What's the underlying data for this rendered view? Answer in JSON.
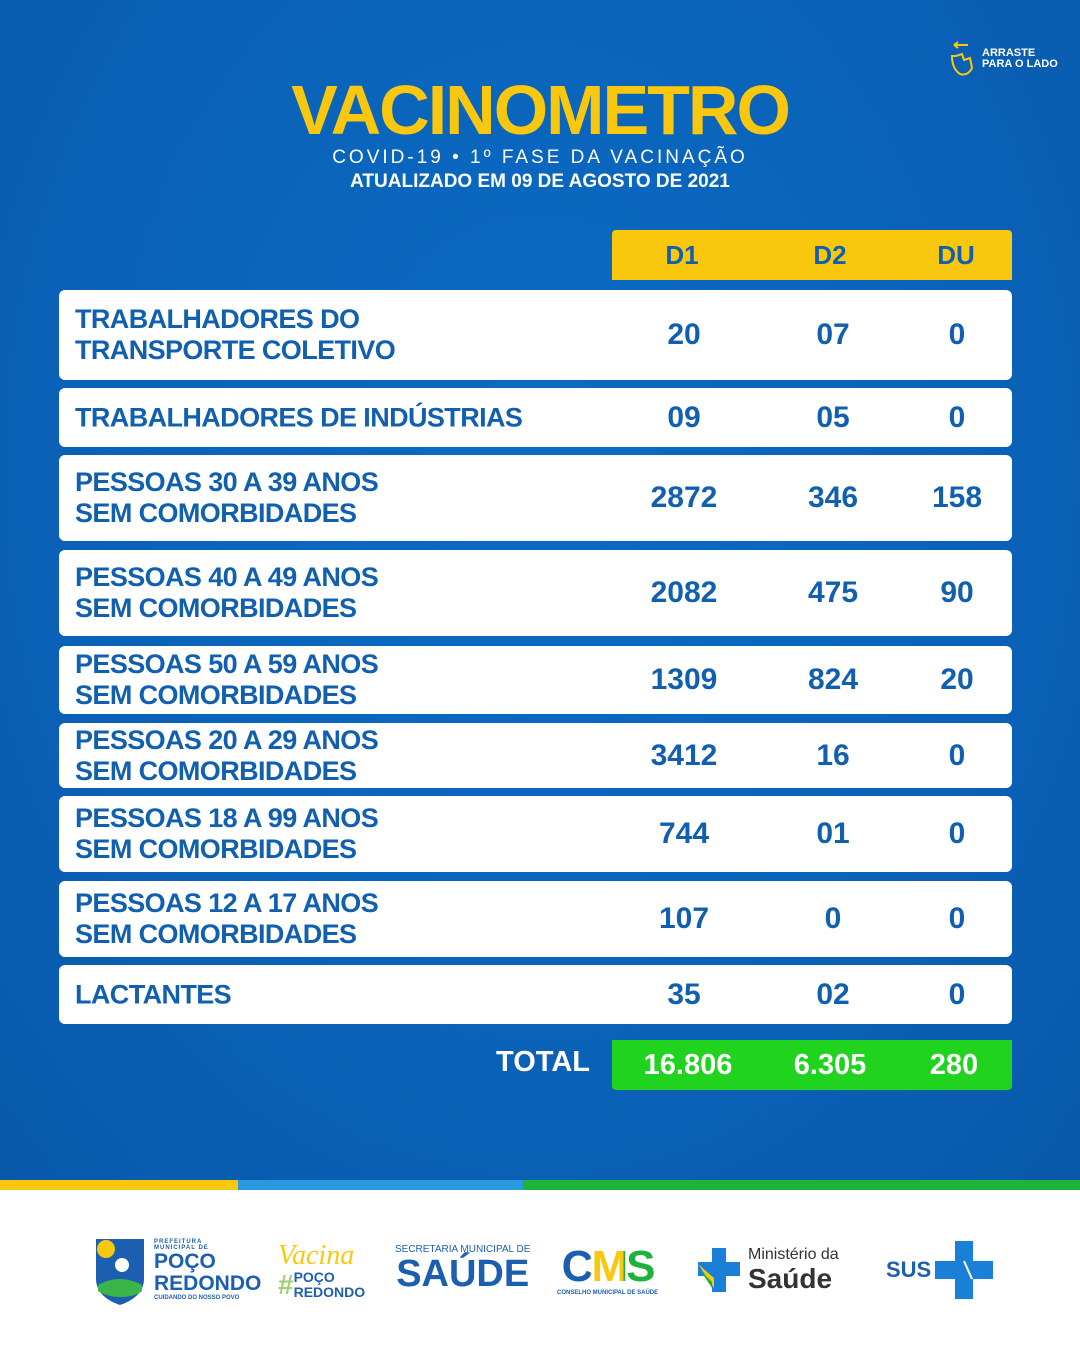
{
  "swipe_hint": {
    "label": "ARRASTE PARA O LADO",
    "icon": "swipe-hand-icon"
  },
  "title": "VACINOMETRO",
  "subtitle": "COVID-19 •  1º FASE DA VACINAÇÃO",
  "updated": "ATUALIZADO EM 09 DE AGOSTO DE 2021",
  "columns": [
    "D1",
    "D2",
    "DU"
  ],
  "rows": [
    {
      "label": "TRABALHADORES DO\nTRANSPORTE COLETIVO",
      "d1": "20",
      "d2": "07",
      "du": "0"
    },
    {
      "label": "TRABALHADORES DE INDÚSTRIAS",
      "d1": "09",
      "d2": "05",
      "du": "0"
    },
    {
      "label": "PESSOAS 30 A 39 ANOS\nSEM COMORBIDADES",
      "d1": "2872",
      "d2": "346",
      "du": "158"
    },
    {
      "label": "PESSOAS 40 A 49 ANOS\nSEM COMORBIDADES",
      "d1": "2082",
      "d2": "475",
      "du": "90"
    },
    {
      "label": "PESSOAS 50 A 59 ANOS\nSEM COMORBIDADES",
      "d1": "1309",
      "d2": "824",
      "du": "20"
    },
    {
      "label": "PESSOAS 20 A 29 ANOS\nSEM COMORBIDADES",
      "d1": "3412",
      "d2": "16",
      "du": "0"
    },
    {
      "label": "PESSOAS 18 A 99 ANOS\nSEM COMORBIDADES",
      "d1": "744",
      "d2": "01",
      "du": "0"
    },
    {
      "label": "PESSOAS 12 A 17 ANOS\nSEM COMORBIDADES",
      "d1": "107",
      "d2": "0",
      "du": "0"
    },
    {
      "label": "LACTANTES",
      "d1": "35",
      "d2": "02",
      "du": "0"
    }
  ],
  "total": {
    "label": "TOTAL",
    "d1": "16.806",
    "d2": "6.305",
    "du": "280"
  },
  "colors": {
    "background": "#0a62b8",
    "yellow": "#f9c80e",
    "text_blue": "#1160b0",
    "green": "#1fd31f"
  },
  "footer": {
    "prefeitura": {
      "top": "PREFEITURA MUNICIPAL DE",
      "name1": "POÇO",
      "name2": "REDONDO",
      "tagline": "CUIDANDO DO NOSSO POVO"
    },
    "vacina": {
      "script": "Vacina",
      "hash": "#",
      "name1": "POÇO",
      "name2": "REDONDO"
    },
    "secretaria": {
      "top": "SECRETARIA MUNICIPAL DE",
      "name": "SAÚDE"
    },
    "cms": {
      "name": "CMS",
      "sub": "CONSELHO MUNICIPAL DE SAÚDE"
    },
    "ministerio": {
      "top": "Ministério da",
      "name": "Saúde"
    },
    "sus": {
      "name": "SUS"
    }
  }
}
